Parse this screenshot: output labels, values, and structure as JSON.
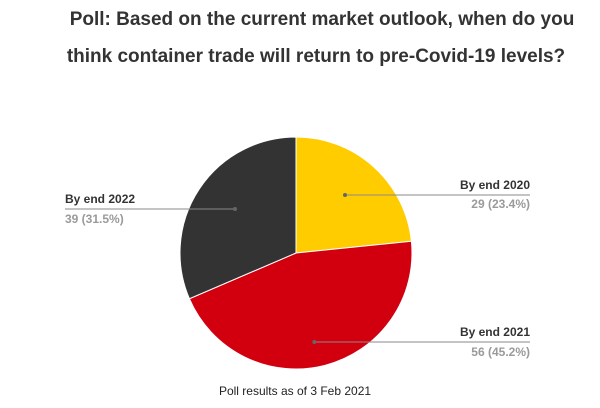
{
  "chart_data": {
    "type": "pie",
    "title_lines": [
      "Poll: Based on the current market outlook, when do you",
      "think container trade will return to pre-Covid-19 levels?"
    ],
    "slices": [
      {
        "label": "By end 2020",
        "value": 29,
        "value_text": "29 (23.4%)",
        "color": "#ffcc00"
      },
      {
        "label": "By end 2021",
        "value": 56,
        "value_text": "56 (45.2%)",
        "color": "#d2000f"
      },
      {
        "label": "By end 2022",
        "value": 39,
        "value_text": "39 (31.5%)",
        "color": "#333333"
      }
    ],
    "start_angle": "12 o'clock",
    "direction": "clockwise",
    "footnote": "Poll results as of 3 Feb 2021"
  }
}
